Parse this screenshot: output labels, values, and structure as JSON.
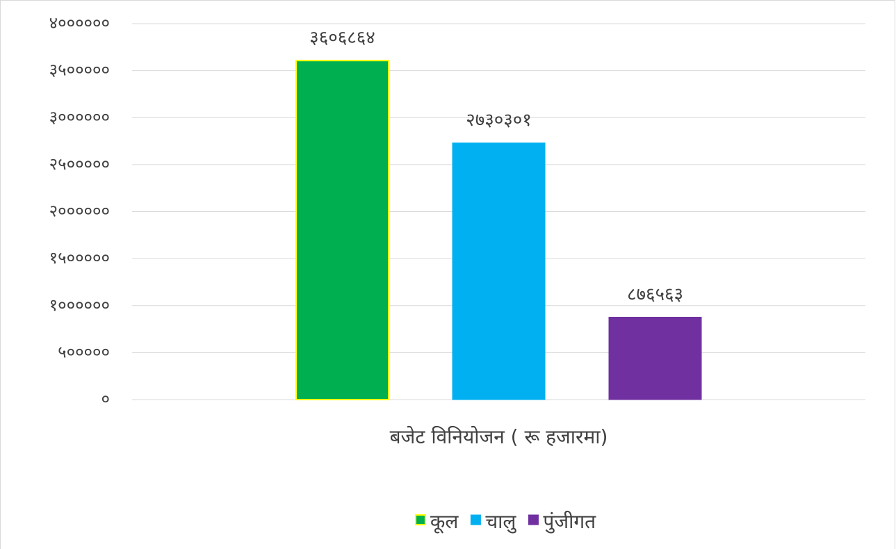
{
  "chart_data": {
    "type": "bar",
    "categories": [
      "बजेट विनियोजन ( रू हजारमा)"
    ],
    "series": [
      {
        "name": "कूल",
        "color": "#00b050",
        "values": [
          3606864
        ],
        "value_labels": [
          "३६०६८६४"
        ]
      },
      {
        "name": "चालु",
        "color": "#00b0f0",
        "values": [
          2730301
        ],
        "value_labels": [
          "२७३०३०१"
        ]
      },
      {
        "name": "पुंजीगत",
        "color": "#7030a0",
        "values": [
          876563
        ],
        "value_labels": [
          "८७६५६३"
        ]
      }
    ],
    "ylim": [
      0,
      4000000
    ],
    "yticks": [
      {
        "value": 0,
        "label": "०"
      },
      {
        "value": 500000,
        "label": "५०००००"
      },
      {
        "value": 1000000,
        "label": "१००००००"
      },
      {
        "value": 1500000,
        "label": "१५०००००"
      },
      {
        "value": 2000000,
        "label": "२००००००"
      },
      {
        "value": 2500000,
        "label": "२५०००००"
      },
      {
        "value": 3000000,
        "label": "३००००००"
      },
      {
        "value": 3500000,
        "label": "३५०००००"
      },
      {
        "value": 4000000,
        "label": "४००००००"
      }
    ],
    "grid": true,
    "legend": "bottom"
  }
}
